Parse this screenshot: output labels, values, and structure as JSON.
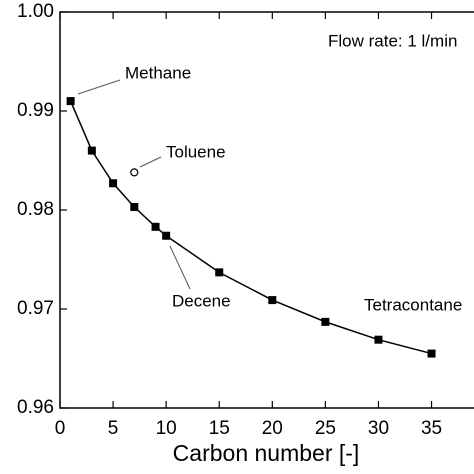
{
  "chart_data": {
    "type": "line",
    "x_label": "Carbon number [-]",
    "x": [
      1,
      3,
      5,
      7,
      9,
      10,
      15,
      20,
      25,
      30,
      35
    ],
    "values": [
      0.991,
      0.986,
      0.9827,
      0.9803,
      0.9783,
      0.9774,
      0.9737,
      0.9709,
      0.9687,
      0.9669,
      0.9655
    ],
    "color": "#000000",
    "marker": "square",
    "extra_point": {
      "x": [
        7
      ],
      "values": [
        0.9838
      ]
    },
    "annotations": [
      "Methane",
      "Toluene",
      "Decene",
      "Tetracontane",
      "Flow rate: 1 l/min"
    ],
    "xlim": [
      0,
      39
    ],
    "xticks": [
      0,
      5,
      10,
      15,
      20,
      25,
      30,
      35
    ],
    "ylim": [
      0.96,
      1
    ],
    "yticks": [
      0.96,
      0.97,
      0.98,
      0.99,
      {
        "value": 1,
        "label": "1.00"
      }
    ]
  }
}
